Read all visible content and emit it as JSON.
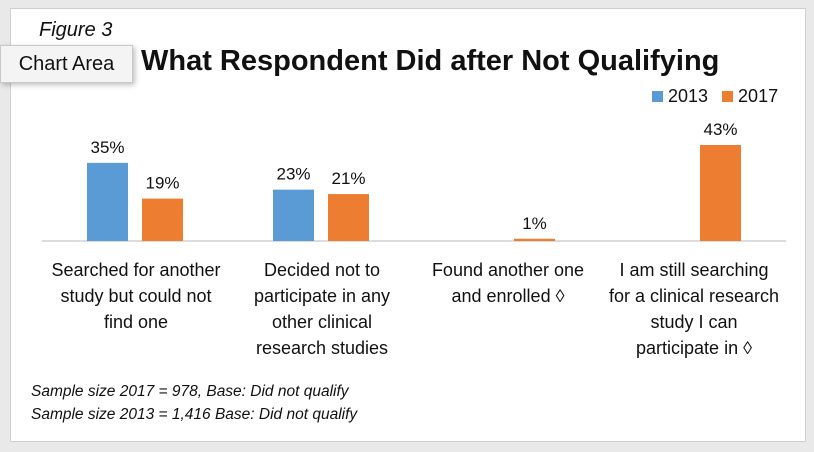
{
  "figure_label": "Figure 3",
  "tooltip": "Chart Area",
  "chart_data": {
    "type": "bar",
    "title": "What Respondent Did after Not Qualifying",
    "categories": [
      "Searched for another study but could not find one",
      "Decided not to participate in any other clinical research studies",
      "Found another one and enrolled ◊",
      "I am still searching for a clinical research study I can participate in ◊"
    ],
    "category_lines": [
      [
        "Searched for another",
        "study but could not",
        "find one"
      ],
      [
        "Decided not to",
        "participate in any",
        "other clinical",
        "research studies"
      ],
      [
        "Found another one",
        "and enrolled ◊"
      ],
      [
        "I am still searching",
        "for a clinical research",
        "study I can",
        "participate in ◊"
      ]
    ],
    "series": [
      {
        "name": "2013",
        "color": "#5b9bd5",
        "values": [
          35,
          23,
          null,
          null
        ],
        "labels": [
          "35%",
          "23%",
          "",
          ""
        ]
      },
      {
        "name": "2017",
        "color": "#ed7d31",
        "values": [
          19,
          21,
          1,
          43
        ],
        "labels": [
          "19%",
          "21%",
          "1%",
          "43%"
        ]
      }
    ],
    "ylim": [
      0,
      43
    ],
    "xlabel": "",
    "ylabel": "",
    "legend_position": "top-right",
    "grid": false
  },
  "notes": [
    "Sample size 2017 = 978, Base: Did not qualify",
    "Sample size 2013 = 1,416 Base: Did not qualify"
  ]
}
